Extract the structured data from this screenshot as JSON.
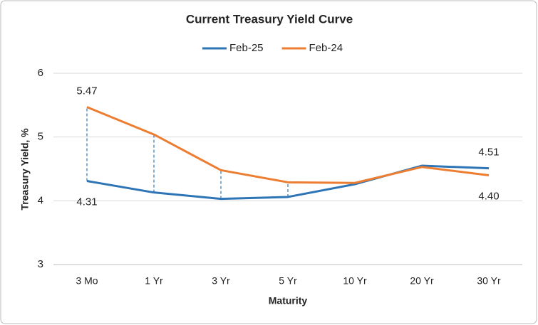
{
  "chart_data": {
    "type": "line",
    "title": "Current Treasury Yield Curve",
    "x_label": "Maturity",
    "y_label": "Treasury Yield, %",
    "categories": [
      "3 Mo",
      "1 Yr",
      "3 Yr",
      "5 Yr",
      "10 Yr",
      "20 Yr",
      "30 Yr"
    ],
    "series": [
      {
        "name": "Feb-25",
        "color": "#2e75b6",
        "values": [
          4.31,
          4.13,
          4.03,
          4.06,
          4.26,
          4.55,
          4.51
        ],
        "value_labels": [
          "4.31",
          null,
          null,
          null,
          null,
          null,
          "4.51"
        ]
      },
      {
        "name": "Feb-24",
        "color": "#ed7d31",
        "values": [
          5.47,
          5.04,
          4.48,
          4.29,
          4.28,
          4.53,
          4.4
        ],
        "value_labels": [
          "5.47",
          null,
          null,
          null,
          null,
          null,
          "4.40"
        ]
      }
    ],
    "ylim": [
      3,
      6
    ],
    "yticks": [
      3,
      4,
      5,
      6
    ],
    "grid": true,
    "legend": "top"
  }
}
